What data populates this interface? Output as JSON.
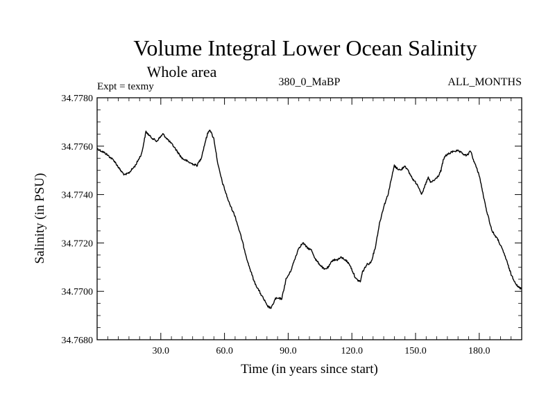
{
  "chart_data": {
    "type": "line",
    "title": "Volume Integral Lower Ocean Salinity",
    "subtitle": "Whole area",
    "header_left": "Expt = texmy",
    "header_center": "380_0_MaBP",
    "header_right": "ALL_MONTHS",
    "xlabel": "Time (in years since start)",
    "ylabel": "Salinity (in PSU)",
    "xlim": [
      0,
      200
    ],
    "ylim": [
      34.768,
      34.778
    ],
    "xticks": [
      30,
      60,
      90,
      120,
      150,
      180
    ],
    "xtick_labels": [
      "30.0",
      "60.0",
      "90.0",
      "120.0",
      "150.0",
      "180.0"
    ],
    "yticks": [
      34.768,
      34.77,
      34.772,
      34.774,
      34.776,
      34.778
    ],
    "ytick_labels": [
      "34.7680",
      "34.7700",
      "34.7720",
      "34.7740",
      "34.7760",
      "34.7780"
    ],
    "grid": false,
    "series": [
      {
        "name": "salinity",
        "color": "#000000",
        "x": [
          0,
          4,
          8,
          11,
          13,
          15,
          18,
          21,
          23,
          25,
          28,
          31,
          33,
          36,
          40,
          44,
          47,
          49,
          51,
          52,
          53,
          55,
          57,
          59,
          62,
          65,
          68,
          71,
          74,
          77,
          79,
          80,
          82,
          84,
          87,
          89,
          91,
          93,
          95,
          97,
          99,
          101,
          103,
          105,
          107,
          109,
          111,
          113,
          115,
          117,
          119,
          121,
          122,
          124,
          125,
          127,
          129,
          131,
          133,
          135,
          137,
          139,
          140,
          141,
          143,
          145,
          147,
          149,
          151,
          153,
          155,
          156,
          157,
          159,
          161,
          162,
          163,
          164,
          166,
          168,
          170,
          172,
          174,
          176,
          177,
          180,
          183,
          186,
          189,
          192,
          195,
          198,
          200
        ],
        "values": [
          34.7759,
          34.7757,
          34.7754,
          34.775,
          34.7748,
          34.7749,
          34.7752,
          34.7757,
          34.7766,
          34.7764,
          34.7762,
          34.7765,
          34.7763,
          34.776,
          34.7755,
          34.7753,
          34.7752,
          34.7755,
          34.7762,
          34.7765,
          34.7767,
          34.7763,
          34.7752,
          34.7745,
          34.7737,
          34.7731,
          34.7722,
          34.7712,
          34.7704,
          34.7699,
          34.7696,
          34.7694,
          34.7693,
          34.7697,
          34.7697,
          34.7705,
          34.7708,
          34.7713,
          34.7718,
          34.772,
          34.7718,
          34.7717,
          34.7713,
          34.7711,
          34.7709,
          34.771,
          34.7713,
          34.7713,
          34.7714,
          34.7713,
          34.7711,
          34.7707,
          34.7705,
          34.7704,
          34.7708,
          34.7711,
          34.7712,
          34.7718,
          34.7728,
          34.7735,
          34.774,
          34.7748,
          34.7752,
          34.7751,
          34.775,
          34.7752,
          34.7749,
          34.7746,
          34.7744,
          34.774,
          34.7745,
          34.7747,
          34.7745,
          34.7746,
          34.7748,
          34.775,
          34.7754,
          34.7756,
          34.7757,
          34.7758,
          34.7758,
          34.7757,
          34.7756,
          34.7758,
          34.7755,
          34.7748,
          34.7735,
          34.7725,
          34.7721,
          34.7715,
          34.7707,
          34.7702,
          34.7701
        ]
      }
    ]
  }
}
